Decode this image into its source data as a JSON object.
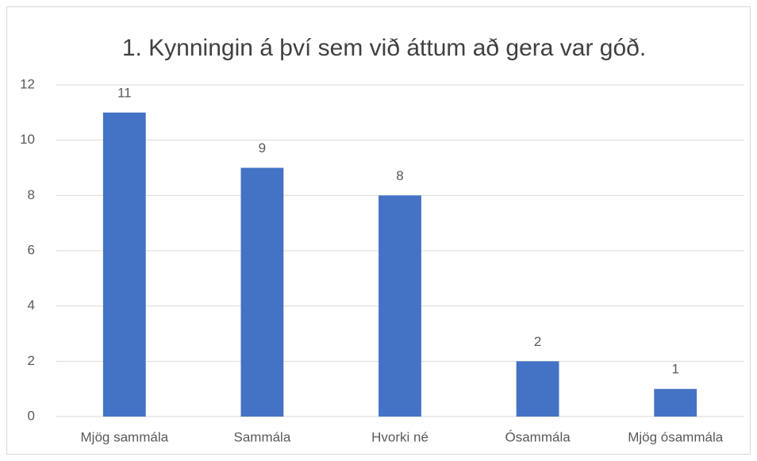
{
  "chart_data": {
    "type": "bar",
    "title": "1. Kynningin á því sem við áttum að gera var góð.",
    "categories": [
      "Mjög sammála",
      "Sammála",
      "Hvorki né",
      "Ósammála",
      "Mjög ósammála"
    ],
    "values": [
      11,
      9,
      8,
      2,
      1
    ],
    "color": "#4472c4",
    "ylim": [
      0,
      12
    ],
    "yticks": [
      0,
      2,
      4,
      6,
      8,
      10,
      12
    ],
    "grid": true,
    "data_labels": true
  }
}
